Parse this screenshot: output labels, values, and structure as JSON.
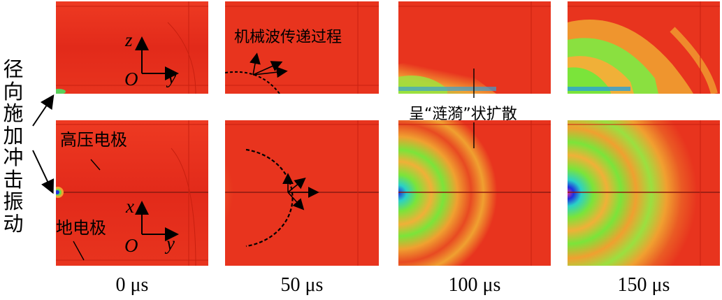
{
  "side_label": [
    "径",
    "向",
    "施",
    "加",
    "冲",
    "击",
    "振",
    "动"
  ],
  "time_labels": [
    "0 μs",
    "50 μs",
    "100 μs",
    "150 μs"
  ],
  "annotations": {
    "high_voltage_electrode": "高压电极",
    "ground_electrode": "地电极",
    "wave_process": "机械波传递过程",
    "ripple_spread": "呈“涟漪”状扩散"
  },
  "axes": {
    "top": {
      "vertical": "z",
      "horizontal": "y",
      "origin": "O"
    },
    "bottom": {
      "vertical": "x",
      "horizontal": "y",
      "origin": "O"
    }
  },
  "colors": {
    "background_red": "#e8321e",
    "high_green": "#7be43a",
    "peak_blue": "#1f2fe0",
    "cyan": "#2ad0c8",
    "orange": "#f0a030"
  }
}
